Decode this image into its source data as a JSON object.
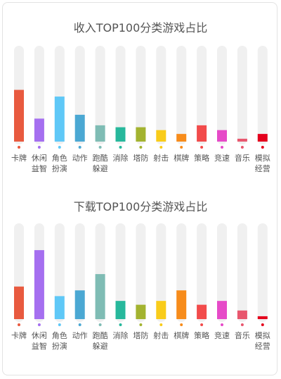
{
  "chart_data": [
    {
      "type": "bar",
      "title": "收入TOP100分类游戏占比",
      "categories": [
        [
          "卡牌"
        ],
        [
          "休闲",
          "益智"
        ],
        [
          "角色",
          "扮演"
        ],
        [
          "动作"
        ],
        [
          "跑酷",
          "躲避"
        ],
        [
          "消除"
        ],
        [
          "塔防"
        ],
        [
          "射击"
        ],
        [
          "棋牌"
        ],
        [
          "策略"
        ],
        [
          "竞速"
        ],
        [
          "音乐"
        ],
        [
          "模拟",
          "经营"
        ]
      ],
      "values": [
        54,
        24,
        47,
        28,
        17,
        15,
        15,
        12,
        8,
        17,
        12,
        3,
        8
      ],
      "ylim": [
        0,
        100
      ],
      "grid": false,
      "legend": "none",
      "colors": [
        "#e85a3f",
        "#a56ff0",
        "#5fc8f7",
        "#4ba8d3",
        "#7fbcb4",
        "#27b89c",
        "#a3b330",
        "#f9cc1a",
        "#f78c1b",
        "#f24b4b",
        "#e64ac8",
        "#e8576e",
        "#e4001c"
      ]
    },
    {
      "type": "bar",
      "title": "下载TOP100分类游戏占比",
      "categories": [
        [
          "卡牌"
        ],
        [
          "休闲",
          "益智"
        ],
        [
          "角色",
          "扮演"
        ],
        [
          "动作"
        ],
        [
          "跑酷",
          "躲避"
        ],
        [
          "消除"
        ],
        [
          "塔防"
        ],
        [
          "射击"
        ],
        [
          "棋牌"
        ],
        [
          "策略"
        ],
        [
          "竞速"
        ],
        [
          "音乐"
        ],
        [
          "模拟",
          "经营"
        ]
      ],
      "values": [
        34,
        72,
        24,
        30,
        47,
        19,
        15,
        19,
        30,
        15,
        19,
        9,
        3
      ],
      "ylim": [
        0,
        100
      ],
      "grid": false,
      "legend": "none",
      "colors": [
        "#e85a3f",
        "#a56ff0",
        "#5fc8f7",
        "#4ba8d3",
        "#7fbcb4",
        "#27b89c",
        "#a3b330",
        "#f9cc1a",
        "#f78c1b",
        "#f24b4b",
        "#e64ac8",
        "#e8576e",
        "#e4001c"
      ]
    }
  ]
}
